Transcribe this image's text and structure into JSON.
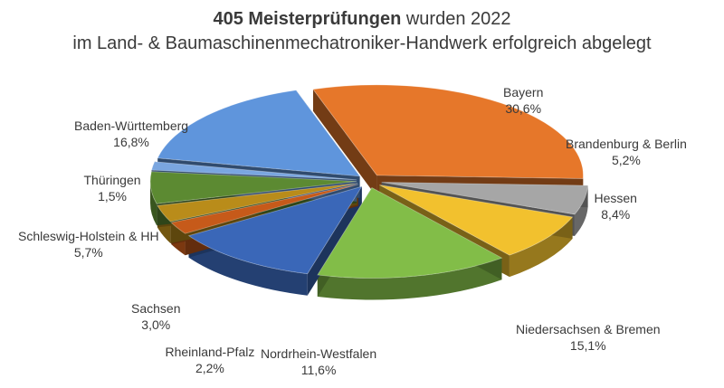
{
  "chart_data": {
    "type": "pie",
    "title_bold": "405 Meisterprüfungen",
    "title_rest": "wurden 2022",
    "subtitle": "im Land- & Baumaschinenmechatroniker-Handwerk erfolgreich abgelegt",
    "slices": [
      {
        "name": "Bayern",
        "label": "30,6%",
        "value": 30.6,
        "color": "#e6772a"
      },
      {
        "name": "Brandenburg & Berlin",
        "label": "5,2%",
        "value": 5.2,
        "color": "#a6a6a6"
      },
      {
        "name": "Hessen",
        "label": "8,4%",
        "value": 8.4,
        "color": "#f2c12e"
      },
      {
        "name": "Niedersachsen & Bremen",
        "label": "15,1%",
        "value": 15.1,
        "color": "#82bd48"
      },
      {
        "name": "Nordrhein-Westfalen",
        "label": "11,6%",
        "value": 11.6,
        "color": "#3a67b8"
      },
      {
        "name": "Rheinland-Pfalz",
        "label": "2,2%",
        "value": 2.2,
        "color": "#c65a1a"
      },
      {
        "name": "Sachsen",
        "label": "3,0%",
        "value": 3.0,
        "color": "#b98c1a"
      },
      {
        "name": "Schleswig-Holstein & HH",
        "label": "5,7%",
        "value": 5.7,
        "color": "#5c8a32"
      },
      {
        "name": "Thüringen",
        "label": "1,5%",
        "value": 1.5,
        "color": "#7aa6e0"
      },
      {
        "name": "Baden-Württemberg",
        "label": "16,8%",
        "value": 16.8,
        "color": "#5f95dc"
      }
    ]
  }
}
